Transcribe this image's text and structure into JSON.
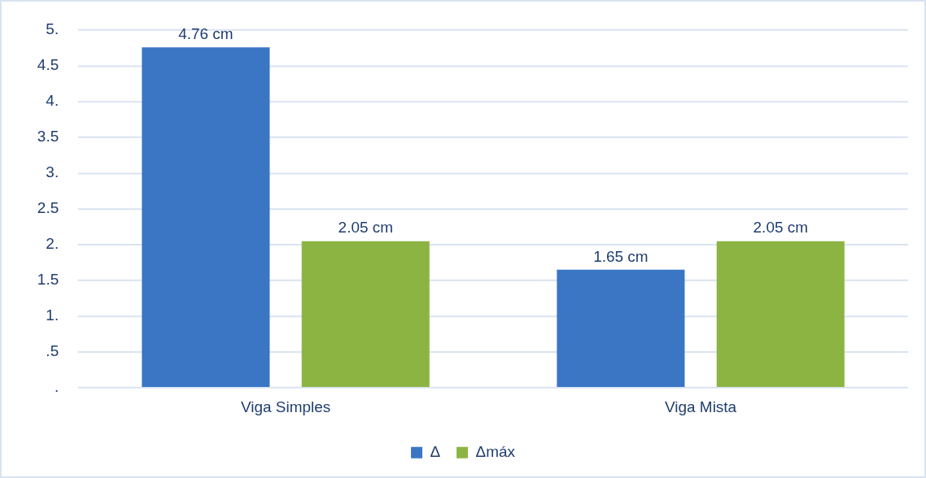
{
  "chart_data": {
    "type": "bar",
    "categories": [
      "Viga Simples",
      "Viga Mista"
    ],
    "series": [
      {
        "name": "Δ",
        "color": "#3a76c4",
        "values": [
          4.76,
          1.65
        ],
        "value_labels": [
          "4.76 cm",
          "1.65 cm"
        ]
      },
      {
        "name": "Δmáx",
        "color": "#8cb443",
        "values": [
          2.05,
          2.05
        ],
        "value_labels": [
          "2.05 cm",
          "2.05 cm"
        ]
      }
    ],
    "ylim": [
      0,
      5
    ],
    "yticks": [
      {
        "value": 0,
        "label": "."
      },
      {
        "value": 0.5,
        "label": ".5"
      },
      {
        "value": 1,
        "label": "1."
      },
      1.5,
      {
        "value": 2,
        "label": "2."
      },
      2.5,
      {
        "value": 3,
        "label": "3."
      },
      3.5,
      {
        "value": 4,
        "label": "4."
      },
      4.5,
      {
        "value": 5,
        "label": "5."
      }
    ],
    "grid": "y",
    "legend": "bottom"
  }
}
